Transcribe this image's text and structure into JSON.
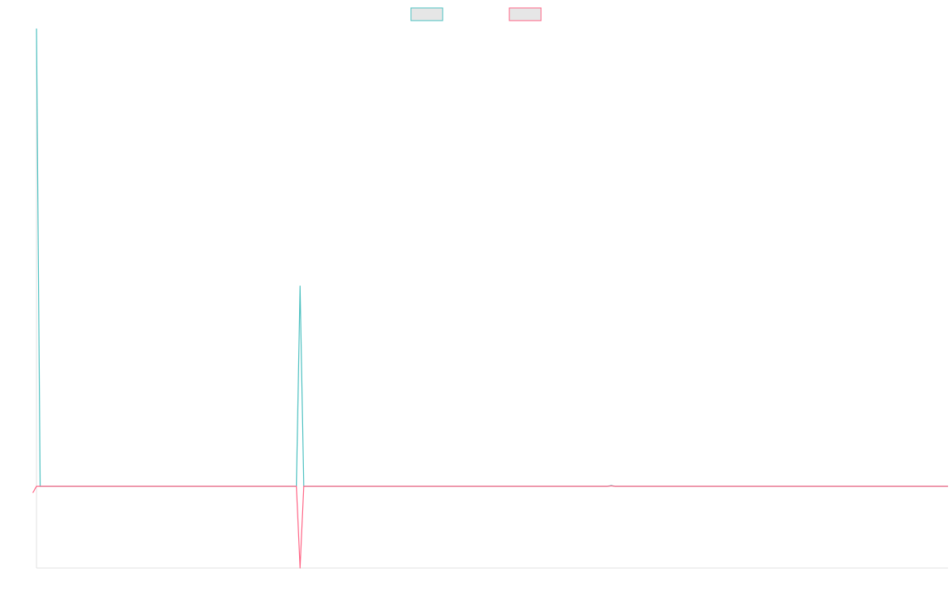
{
  "chart_data": {
    "type": "line",
    "title": "",
    "xlabel": "",
    "ylabel": "",
    "x_count": 250,
    "ylim": [
      -1,
      5.6
    ],
    "grid": false,
    "legend_position": "top-center",
    "series": [
      {
        "name": "",
        "color": "#4bc0c0",
        "points": [
          [
            0,
            5.6
          ],
          [
            1,
            0
          ],
          [
            71,
            0
          ],
          [
            72,
            2.45
          ],
          [
            73,
            0
          ],
          [
            156,
            0
          ],
          [
            157,
            0.01
          ],
          [
            158,
            0
          ],
          [
            249,
            0
          ]
        ]
      },
      {
        "name": "",
        "color": "#ff6384",
        "points": [
          [
            -1,
            -0.08
          ],
          [
            0,
            0
          ],
          [
            71,
            0
          ],
          [
            72,
            -1
          ],
          [
            73,
            0
          ],
          [
            156,
            0
          ],
          [
            157,
            0.005
          ],
          [
            158,
            0
          ],
          [
            249,
            0
          ]
        ]
      }
    ]
  }
}
